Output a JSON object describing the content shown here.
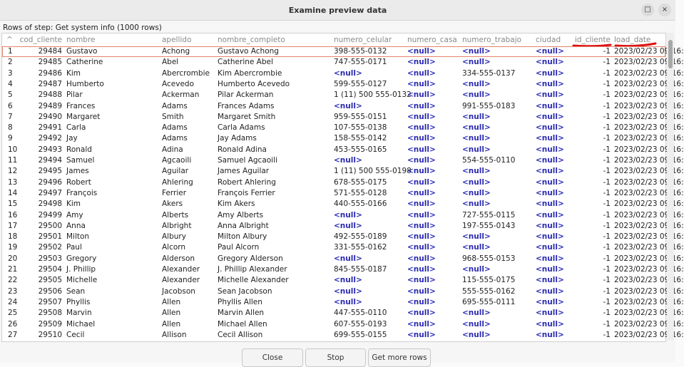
{
  "window": {
    "title": "Examine preview data"
  },
  "step_label": "Rows of step: Get system info (1000 rows)",
  "table": {
    "columns": [
      "cod_cliente",
      "nombre",
      "apellido",
      "nombre_completo",
      "numero_celular",
      "numero_casa",
      "numero_trabajo",
      "ciudad",
      "id_cliente",
      "load_date"
    ],
    "rows": [
      [
        1,
        29484,
        "Gustavo",
        "Achong",
        "Gustavo Achong",
        "398-555-0132",
        "<null>",
        "<null>",
        "<null>",
        -1,
        "2023/02/23 09:16:"
      ],
      [
        2,
        29485,
        "Catherine",
        "Abel",
        "Catherine Abel",
        "747-555-0171",
        "<null>",
        "<null>",
        "<null>",
        -1,
        "2023/02/23 09:16:"
      ],
      [
        3,
        29486,
        "Kim",
        "Abercrombie",
        "Kim Abercrombie",
        "<null>",
        "<null>",
        "334-555-0137",
        "<null>",
        -1,
        "2023/02/23 09:16:"
      ],
      [
        4,
        29487,
        "Humberto",
        "Acevedo",
        "Humberto Acevedo",
        "599-555-0127",
        "<null>",
        "<null>",
        "<null>",
        -1,
        "2023/02/23 09:16:"
      ],
      [
        5,
        29488,
        "Pilar",
        "Ackerman",
        "Pilar Ackerman",
        "1 (11) 500 555-0132",
        "<null>",
        "<null>",
        "<null>",
        -1,
        "2023/02/23 09:16:"
      ],
      [
        6,
        29489,
        "Frances",
        "Adams",
        "Frances Adams",
        "<null>",
        "<null>",
        "991-555-0183",
        "<null>",
        -1,
        "2023/02/23 09:16:"
      ],
      [
        7,
        29490,
        "Margaret",
        "Smith",
        "Margaret Smith",
        "959-555-0151",
        "<null>",
        "<null>",
        "<null>",
        -1,
        "2023/02/23 09:16:"
      ],
      [
        8,
        29491,
        "Carla",
        "Adams",
        "Carla Adams",
        "107-555-0138",
        "<null>",
        "<null>",
        "<null>",
        -1,
        "2023/02/23 09:16:"
      ],
      [
        9,
        29492,
        "Jay",
        "Adams",
        "Jay Adams",
        "158-555-0142",
        "<null>",
        "<null>",
        "<null>",
        -1,
        "2023/02/23 09:16:"
      ],
      [
        10,
        29493,
        "Ronald",
        "Adina",
        "Ronald Adina",
        "453-555-0165",
        "<null>",
        "<null>",
        "<null>",
        -1,
        "2023/02/23 09:16:"
      ],
      [
        11,
        29494,
        "Samuel",
        "Agcaoili",
        "Samuel Agcaoili",
        "<null>",
        "<null>",
        "554-555-0110",
        "<null>",
        -1,
        "2023/02/23 09:16:"
      ],
      [
        12,
        29495,
        "James",
        "Aguilar",
        "James Aguilar",
        "1 (11) 500 555-0198",
        "<null>",
        "<null>",
        "<null>",
        -1,
        "2023/02/23 09:16:"
      ],
      [
        13,
        29496,
        "Robert",
        "Ahlering",
        "Robert Ahlering",
        "678-555-0175",
        "<null>",
        "<null>",
        "<null>",
        -1,
        "2023/02/23 09:16:"
      ],
      [
        14,
        29497,
        "François",
        "Ferrier",
        "François Ferrier",
        "571-555-0128",
        "<null>",
        "<null>",
        "<null>",
        -1,
        "2023/02/23 09:16:"
      ],
      [
        15,
        29498,
        "Kim",
        "Akers",
        "Kim Akers",
        "440-555-0166",
        "<null>",
        "<null>",
        "<null>",
        -1,
        "2023/02/23 09:16:"
      ],
      [
        16,
        29499,
        "Amy",
        "Alberts",
        "Amy Alberts",
        "<null>",
        "<null>",
        "727-555-0115",
        "<null>",
        -1,
        "2023/02/23 09:16:"
      ],
      [
        17,
        29500,
        "Anna",
        "Albright",
        "Anna Albright",
        "<null>",
        "<null>",
        "197-555-0143",
        "<null>",
        -1,
        "2023/02/23 09:16:"
      ],
      [
        18,
        29501,
        "Milton",
        "Albury",
        "Milton Albury",
        "492-555-0189",
        "<null>",
        "<null>",
        "<null>",
        -1,
        "2023/02/23 09:16:"
      ],
      [
        19,
        29502,
        "Paul",
        "Alcorn",
        "Paul Alcorn",
        "331-555-0162",
        "<null>",
        "<null>",
        "<null>",
        -1,
        "2023/02/23 09:16:"
      ],
      [
        20,
        29503,
        "Gregory",
        "Alderson",
        "Gregory Alderson",
        "<null>",
        "<null>",
        "968-555-0153",
        "<null>",
        -1,
        "2023/02/23 09:16:"
      ],
      [
        21,
        29504,
        "J. Phillip",
        "Alexander",
        "J. Phillip Alexander",
        "845-555-0187",
        "<null>",
        "<null>",
        "<null>",
        -1,
        "2023/02/23 09:16:"
      ],
      [
        22,
        29505,
        "Michelle",
        "Alexander",
        "Michelle Alexander",
        "<null>",
        "<null>",
        "115-555-0175",
        "<null>",
        -1,
        "2023/02/23 09:16:"
      ],
      [
        23,
        29506,
        "Sean",
        "Jacobson",
        "Sean Jacobson",
        "<null>",
        "<null>",
        "555-555-0162",
        "<null>",
        -1,
        "2023/02/23 09:16:"
      ],
      [
        24,
        29507,
        "Phyllis",
        "Allen",
        "Phyllis Allen",
        "<null>",
        "<null>",
        "695-555-0111",
        "<null>",
        -1,
        "2023/02/23 09:16:"
      ],
      [
        25,
        29508,
        "Marvin",
        "Allen",
        "Marvin Allen",
        "447-555-0110",
        "<null>",
        "<null>",
        "<null>",
        -1,
        "2023/02/23 09:16:"
      ],
      [
        26,
        29509,
        "Michael",
        "Allen",
        "Michael Allen",
        "607-555-0193",
        "<null>",
        "<null>",
        "<null>",
        -1,
        "2023/02/23 09:16:"
      ],
      [
        27,
        29510,
        "Cecil",
        "Allison",
        "Cecil Allison",
        "699-555-0155",
        "<null>",
        "<null>",
        "<null>",
        -1,
        "2023/02/23 09:16:"
      ]
    ]
  },
  "buttons": [
    "Close",
    "Stop",
    "Get more rows"
  ]
}
